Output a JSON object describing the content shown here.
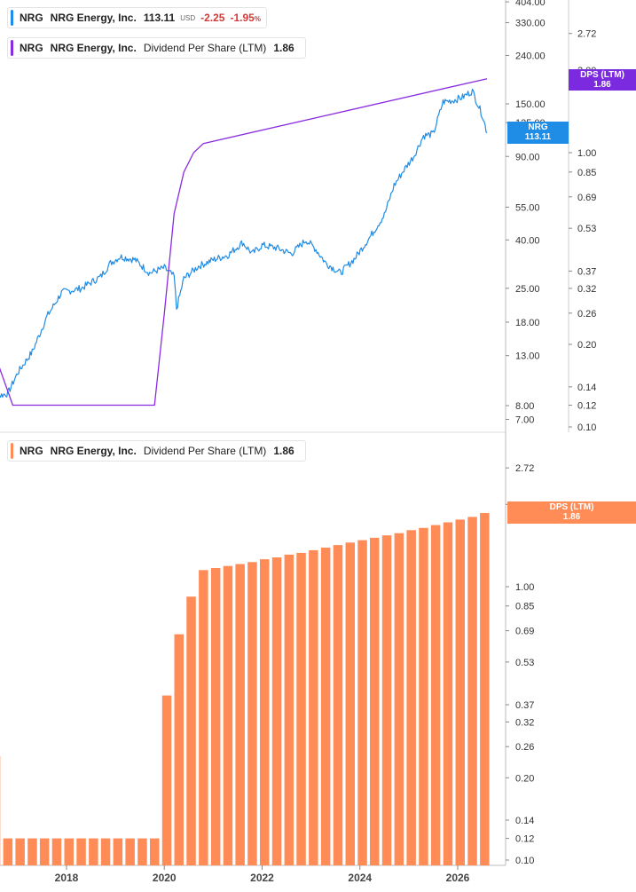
{
  "legend_price": {
    "ticker": "NRG",
    "name": "NRG Energy, Inc.",
    "value": "113.11",
    "unit": "USD",
    "change": "-2.25",
    "pct": "-1.95",
    "pct_sign": "%"
  },
  "legend_dps_top": {
    "ticker": "NRG",
    "name": "NRG Energy, Inc.",
    "metric": "Dividend Per Share (LTM)",
    "value": "1.86"
  },
  "legend_dps_bottom": {
    "ticker": "NRG",
    "name": "NRG Energy, Inc.",
    "metric": "Dividend Per Share (LTM)",
    "value": "1.86"
  },
  "tags": {
    "price_label": "NRG",
    "price_value": "113.11",
    "dps_top_label": "DPS (LTM)",
    "dps_top_value": "1.86",
    "dps_bottom_label": "DPS (LTM)",
    "dps_bottom_value": "1.86"
  },
  "colors": {
    "price": "#1f8ce6",
    "dps_line": "#8a2be2",
    "dps_bar": "#ff8c57",
    "dps_tag_top": "#7b2ae0",
    "price_tag": "#1f8ce6"
  },
  "chart_data": [
    {
      "type": "line",
      "series": [
        {
          "name": "NRG Energy, Inc. (USD)",
          "axis": "left",
          "scale": "log",
          "x": [
            2016.3,
            2016.8,
            2017.0,
            2017.3,
            2017.6,
            2017.9,
            2018.3,
            2018.7,
            2018.9,
            2019.1,
            2019.4,
            2019.7,
            2020.0,
            2020.2,
            2020.25,
            2020.4,
            2020.7,
            2021.0,
            2021.3,
            2021.6,
            2021.8,
            2022.0,
            2022.3,
            2022.6,
            2022.9,
            2023.1,
            2023.3,
            2023.6,
            2023.9,
            2024.2,
            2024.5,
            2024.7,
            2024.9,
            2025.1,
            2025.3,
            2025.5,
            2025.7,
            2025.9,
            2026.1,
            2026.3,
            2026.5,
            2026.6
          ],
          "y": [
            8.5,
            9.0,
            11.0,
            13.5,
            19.0,
            24.0,
            25.0,
            28.0,
            32.0,
            34.0,
            33.0,
            29.0,
            30.5,
            28.0,
            20.5,
            27.5,
            31.0,
            33.0,
            34.5,
            39.0,
            35.0,
            38.0,
            37.0,
            35.0,
            40.0,
            36.5,
            32.0,
            29.0,
            33.5,
            41.0,
            51.0,
            68.0,
            79.0,
            90.0,
            110.0,
            112.0,
            153.0,
            155.0,
            160.0,
            170.0,
            135.0,
            113.11
          ]
        },
        {
          "name": "Dividend Per Share (LTM)",
          "axis": "right",
          "scale": "log",
          "x": [
            2016.3,
            2016.9,
            2017.0,
            2019.8,
            2020.0,
            2020.2,
            2020.4,
            2020.6,
            2020.8,
            2026.6
          ],
          "y": [
            0.24,
            0.12,
            0.12,
            0.12,
            0.26,
            0.6,
            0.85,
            1.0,
            1.08,
            1.86
          ]
        }
      ],
      "left_axis": {
        "ticks": [
          "404.00",
          "330.00",
          "240.00",
          "150.00",
          "125.00",
          "90.00",
          "55.00",
          "40.00",
          "25.00",
          "18.00",
          "13.00",
          "8.00",
          "7.00"
        ]
      },
      "right_axis": {
        "ticks": [
          "2.72",
          "2.00",
          "1.00",
          "0.85",
          "0.69",
          "0.53",
          "0.37",
          "0.32",
          "0.26",
          "0.20",
          "0.14",
          "0.12",
          "0.10"
        ]
      }
    },
    {
      "type": "bar",
      "series": [
        {
          "name": "Dividend Per Share (LTM)",
          "axis": "right",
          "scale": "log",
          "x": [
            2016.55,
            2016.8,
            2017.05,
            2017.3,
            2017.55,
            2017.8,
            2018.05,
            2018.3,
            2018.55,
            2018.8,
            2019.05,
            2019.3,
            2019.55,
            2019.8,
            2020.05,
            2020.3,
            2020.55,
            2020.8,
            2021.05,
            2021.3,
            2021.55,
            2021.8,
            2022.05,
            2022.3,
            2022.55,
            2022.8,
            2023.05,
            2023.3,
            2023.55,
            2023.8,
            2024.05,
            2024.3,
            2024.55,
            2024.8,
            2025.05,
            2025.3,
            2025.55,
            2025.8,
            2026.05,
            2026.3,
            2026.55
          ],
          "values": [
            0.24,
            0.12,
            0.12,
            0.12,
            0.12,
            0.12,
            0.12,
            0.12,
            0.12,
            0.12,
            0.12,
            0.12,
            0.12,
            0.12,
            0.4,
            0.67,
            0.92,
            1.15,
            1.17,
            1.19,
            1.21,
            1.23,
            1.26,
            1.28,
            1.31,
            1.33,
            1.36,
            1.39,
            1.42,
            1.45,
            1.48,
            1.51,
            1.54,
            1.57,
            1.61,
            1.64,
            1.68,
            1.72,
            1.76,
            1.8,
            1.86
          ]
        }
      ],
      "right_axis": {
        "ticks": [
          "2.72",
          "2.00",
          "1.00",
          "0.85",
          "0.69",
          "0.53",
          "0.37",
          "0.32",
          "0.26",
          "0.20",
          "0.14",
          "0.12",
          "0.10"
        ]
      },
      "x_axis": {
        "ticks": [
          "2018",
          "2020",
          "2022",
          "2024",
          "2026"
        ]
      }
    }
  ]
}
